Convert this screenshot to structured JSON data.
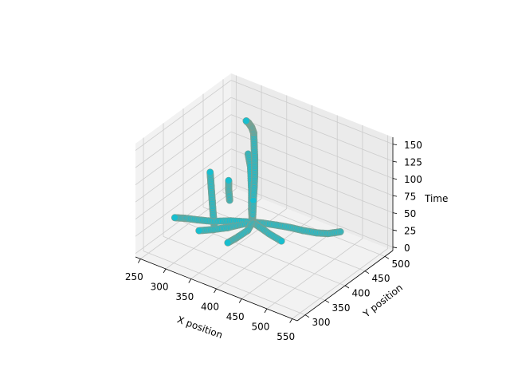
{
  "chart_data": {
    "type": "scatter",
    "projection": "3d",
    "title": "",
    "xlabel": "X position",
    "ylabel": "Y position",
    "zlabel": "Time",
    "x_ticks": [
      250,
      300,
      350,
      400,
      450,
      500,
      550
    ],
    "y_ticks": [
      300,
      350,
      400,
      450,
      500
    ],
    "z_ticks": [
      0,
      25,
      50,
      75,
      100,
      125,
      150
    ],
    "xlim": [
      240,
      560
    ],
    "ylim": [
      280,
      520
    ],
    "zlim": [
      -5,
      160
    ],
    "grid": true,
    "point_color": "#17becf",
    "edge_color": "#7f9f8f",
    "pane_color": "#f2f2f2",
    "grid_color": "#cccccc",
    "tracks": [
      {
        "x": [
          345,
          320,
          300,
          283,
          268,
          258
        ],
        "y": [
          440,
          418,
          398,
          382,
          368,
          356
        ],
        "z": [
          8,
          12,
          14,
          18,
          22,
          25
        ]
      },
      {
        "x": [
          345,
          330,
          318,
          300,
          283
        ],
        "y": [
          440,
          425,
          412,
          398,
          385
        ],
        "z": [
          8,
          6,
          4,
          2,
          1
        ]
      },
      {
        "x": [
          345,
          350,
          345,
          340
        ],
        "y": [
          440,
          422,
          400,
          385
        ],
        "z": [
          8,
          5,
          2,
          0
        ]
      },
      {
        "x": [
          345,
          360,
          380,
          400,
          420,
          440,
          455,
          468
        ],
        "y": [
          440,
          449,
          458,
          466,
          472,
          480,
          490,
          505
        ],
        "z": [
          8,
          7,
          6,
          5,
          4,
          3,
          2,
          2
        ]
      },
      {
        "x": [
          345,
          342,
          338,
          332,
          325
        ],
        "y": [
          440,
          442,
          447,
          452,
          455
        ],
        "z": [
          8,
          25,
          50,
          80,
          95
        ]
      },
      {
        "x": [
          345,
          346,
          347,
          348,
          349,
          349,
          348,
          347
        ],
        "y": [
          440,
          440,
          440,
          441,
          441,
          441,
          441,
          441
        ],
        "z": [
          8,
          20,
          40,
          60,
          80,
          100,
          120,
          138
        ]
      },
      {
        "x": [
          347,
          343,
          338,
          333
        ],
        "y": [
          441,
          441,
          440,
          440
        ],
        "z": [
          138,
          145,
          150,
          152
        ]
      },
      {
        "x": [
          298,
          296,
          294,
          292,
          290
        ],
        "y": [
          404,
          404,
          404,
          404,
          404
        ],
        "z": [
          5,
          20,
          40,
          60,
          80
        ]
      },
      {
        "x": [
          316,
          314,
          314
        ],
        "y": [
          420,
          420,
          420
        ],
        "z": [
          40,
          55,
          68
        ]
      },
      {
        "x": [
          345,
          362,
          385,
          412
        ],
        "y": [
          440,
          437,
          432,
          428
        ],
        "z": [
          8,
          7,
          6,
          5
        ]
      }
    ]
  }
}
